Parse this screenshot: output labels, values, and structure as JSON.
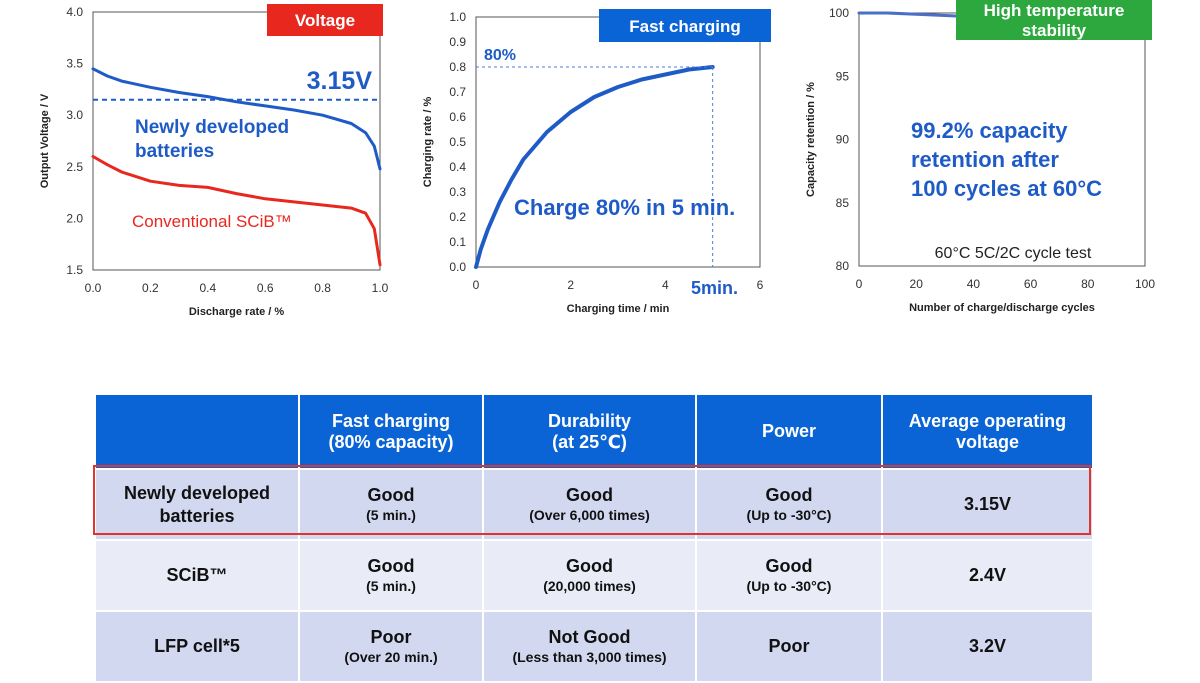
{
  "chart_data": [
    {
      "type": "line",
      "badge": "Voltage",
      "badge_color": "#e8281e",
      "xlabel": "Discharge rate / %",
      "ylabel": "Output Voltage / V",
      "xlim": [
        0.0,
        1.0
      ],
      "ylim": [
        1.5,
        4.0
      ],
      "x_ticks": [
        "0.0",
        "0.2",
        "0.4",
        "0.6",
        "0.8",
        "1.0"
      ],
      "y_ticks": [
        "1.5",
        "2.0",
        "2.5",
        "3.0",
        "3.5",
        "4.0"
      ],
      "reference_line": {
        "y": 3.15,
        "label": "3.15V"
      },
      "series": [
        {
          "name": "Newly developed batteries",
          "color": "#1f5bc6",
          "x": [
            0.0,
            0.05,
            0.1,
            0.2,
            0.3,
            0.4,
            0.5,
            0.6,
            0.7,
            0.8,
            0.9,
            0.95,
            0.98,
            1.0
          ],
          "y": [
            3.45,
            3.38,
            3.33,
            3.27,
            3.22,
            3.18,
            3.13,
            3.09,
            3.05,
            3.0,
            2.92,
            2.83,
            2.7,
            2.48
          ]
        },
        {
          "name": "Conventional SCiB™",
          "color": "#e8281e",
          "x": [
            0.0,
            0.05,
            0.1,
            0.2,
            0.3,
            0.4,
            0.5,
            0.6,
            0.7,
            0.8,
            0.9,
            0.95,
            0.98,
            1.0
          ],
          "y": [
            2.6,
            2.52,
            2.45,
            2.36,
            2.32,
            2.3,
            2.24,
            2.19,
            2.16,
            2.13,
            2.1,
            2.05,
            1.9,
            1.55
          ]
        }
      ],
      "annotations": [
        "3.15V",
        "Newly developed",
        "batteries",
        "Conventional SCiB™"
      ]
    },
    {
      "type": "line",
      "badge": "Fast charging",
      "badge_color": "#0a64d6",
      "xlabel": "Charging time / min",
      "ylabel": "Charging rate / %",
      "xlim": [
        0,
        6
      ],
      "ylim": [
        0.0,
        1.0
      ],
      "x_ticks": [
        "0",
        "2",
        "4",
        "6"
      ],
      "y_ticks": [
        "0.0",
        "0.1",
        "0.2",
        "0.3",
        "0.4",
        "0.5",
        "0.6",
        "0.7",
        "0.8",
        "0.9",
        "1.0"
      ],
      "series": [
        {
          "name": "Charging rate",
          "color": "#1f5bc6",
          "x": [
            0,
            0.1,
            0.25,
            0.5,
            0.75,
            1.0,
            1.5,
            2.0,
            2.5,
            3.0,
            3.5,
            4.0,
            4.5,
            5.0
          ],
          "y": [
            0.0,
            0.07,
            0.15,
            0.26,
            0.35,
            0.43,
            0.54,
            0.62,
            0.68,
            0.72,
            0.75,
            0.77,
            0.79,
            0.8
          ]
        }
      ],
      "marker_label_y": "80%",
      "marker_label_x": "5min.",
      "annotation": "Charge 80% in 5 min."
    },
    {
      "type": "line",
      "badge": "High temperature stability",
      "badge_lines": [
        "High temperature",
        "stability"
      ],
      "badge_color": "#2ca83f",
      "xlabel": "Number of charge/discharge cycles",
      "ylabel": "Capacity retention / %",
      "xlim": [
        0,
        100
      ],
      "ylim": [
        80,
        100
      ],
      "x_ticks": [
        "0",
        "20",
        "40",
        "60",
        "80",
        "100"
      ],
      "y_ticks": [
        "80",
        "85",
        "90",
        "95",
        "100"
      ],
      "series": [
        {
          "name": "Capacity retention",
          "color": "#4a6fc9",
          "x": [
            0,
            10,
            20,
            30,
            40,
            50,
            60,
            70,
            80,
            90,
            100
          ],
          "y": [
            100.0,
            100.0,
            99.9,
            99.8,
            99.7,
            99.6,
            99.6,
            99.5,
            99.4,
            99.3,
            99.2
          ]
        }
      ],
      "annotation_lines": [
        "99.2% capacity",
        "retention after",
        "100 cycles at 60°C"
      ],
      "note": "60°C 5C/2C cycle test"
    }
  ],
  "comparison_table": {
    "headers": [
      {
        "lines": [
          ""
        ]
      },
      {
        "lines": [
          "Fast charging",
          "(80% capacity)"
        ]
      },
      {
        "lines": [
          "Durability",
          "(at 25℃)"
        ]
      },
      {
        "lines": [
          "Power"
        ]
      },
      {
        "lines": [
          "Average operating",
          "voltage"
        ]
      }
    ],
    "rows": [
      {
        "name_lines": [
          "Newly developed",
          "batteries"
        ],
        "highlighted": true,
        "cells": [
          {
            "main": "Good",
            "sub": "(5 min.)"
          },
          {
            "main": "Good",
            "sub": "(Over 6,000 times)"
          },
          {
            "main": "Good",
            "sub": "(Up to -30°C)"
          },
          {
            "main": "3.15V",
            "sub": ""
          }
        ]
      },
      {
        "name_lines": [
          "SCiB™"
        ],
        "highlighted": false,
        "cells": [
          {
            "main": "Good",
            "sub": "(5 min.)"
          },
          {
            "main": "Good",
            "sub": "(20,000 times)"
          },
          {
            "main": "Good",
            "sub": "(Up to -30°C)"
          },
          {
            "main": "2.4V",
            "sub": ""
          }
        ]
      },
      {
        "name_lines": [
          "LFP cell*5"
        ],
        "highlighted": false,
        "cells": [
          {
            "main": "Poor",
            "sub": "(Over 20 min.)"
          },
          {
            "main": "Not Good",
            "sub": "(Less than 3,000 times)"
          },
          {
            "main": "Poor",
            "sub": ""
          },
          {
            "main": "3.2V",
            "sub": ""
          }
        ]
      }
    ]
  }
}
